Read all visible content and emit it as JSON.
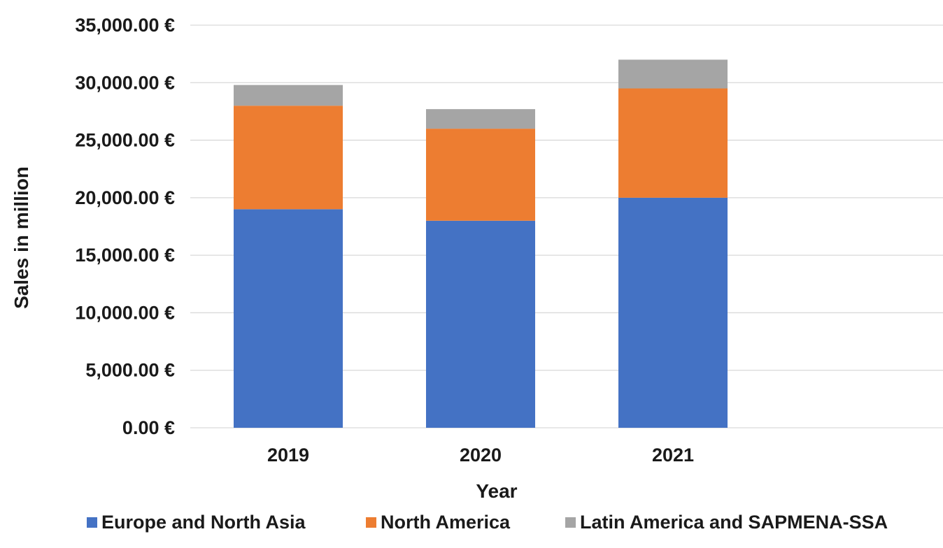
{
  "chart_data": {
    "type": "bar",
    "stacked": true,
    "categories": [
      "2019",
      "2020",
      "2021"
    ],
    "series": [
      {
        "name": "Europe and North Asia",
        "color": "#4472c4",
        "values": [
          19000,
          18000,
          20000
        ]
      },
      {
        "name": "North America",
        "color": "#ed7d31",
        "values": [
          9000,
          8000,
          9500
        ]
      },
      {
        "name": "Latin America and SAPMENA-SSA",
        "color": "#a5a5a5",
        "values": [
          1800,
          1700,
          2500
        ]
      }
    ],
    "xlabel": "Year",
    "ylabel": "Sales in million",
    "ylim": [
      0,
      35000
    ],
    "yticks": [
      0,
      5000,
      10000,
      15000,
      20000,
      25000,
      30000,
      35000
    ],
    "ytick_labels": [
      "0.00 €",
      "5,000.00 €",
      "10,000.00 €",
      "15,000.00 €",
      "20,000.00 €",
      "25,000.00 €",
      "30,000.00 €",
      "35,000.00 €"
    ],
    "grid": true,
    "legend_position": "bottom",
    "gridline_color": "#d9d9d9"
  }
}
